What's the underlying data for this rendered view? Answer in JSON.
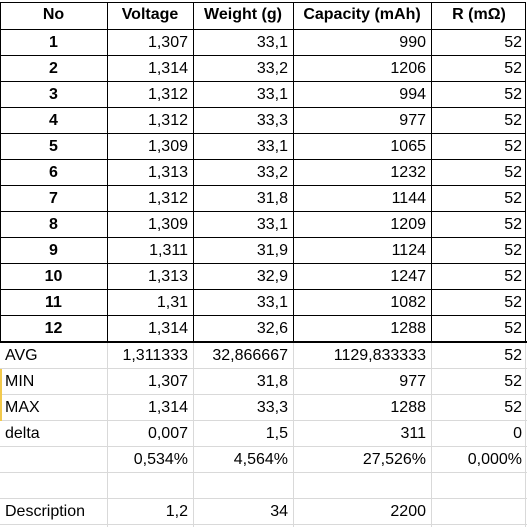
{
  "headers": [
    "No",
    "Voltage",
    "Weight (g)",
    "Capacity  (mAh)",
    "R (mΩ)"
  ],
  "rows": [
    [
      "1",
      "1,307",
      "33,1",
      "990",
      "52"
    ],
    [
      "2",
      "1,314",
      "33,2",
      "1206",
      "52"
    ],
    [
      "3",
      "1,312",
      "33,1",
      "994",
      "52"
    ],
    [
      "4",
      "1,312",
      "33,3",
      "977",
      "52"
    ],
    [
      "5",
      "1,309",
      "33,1",
      "1065",
      "52"
    ],
    [
      "6",
      "1,313",
      "33,2",
      "1232",
      "52"
    ],
    [
      "7",
      "1,312",
      "31,8",
      "1144",
      "52"
    ],
    [
      "8",
      "1,309",
      "33,1",
      "1209",
      "52"
    ],
    [
      "9",
      "1,311",
      "31,9",
      "1124",
      "52"
    ],
    [
      "10",
      "1,313",
      "32,9",
      "1247",
      "52"
    ],
    [
      "11",
      "1,31",
      "33,1",
      "1082",
      "52"
    ],
    [
      "12",
      "1,314",
      "32,6",
      "1288",
      "52"
    ]
  ],
  "stats": [
    [
      "AVG",
      "1,311333",
      "32,866667",
      "1129,833333",
      "52"
    ],
    [
      "MIN",
      "1,307",
      "31,8",
      "977",
      "52"
    ],
    [
      "MAX",
      "1,314",
      "33,3",
      "1288",
      "52"
    ],
    [
      "delta",
      "0,007",
      "1,5",
      "311",
      "0"
    ],
    [
      "",
      "0,534%",
      "4,564%",
      "27,526%",
      "0,000%"
    ]
  ],
  "description": [
    "Description",
    "1,2",
    "34",
    "2200",
    ""
  ]
}
